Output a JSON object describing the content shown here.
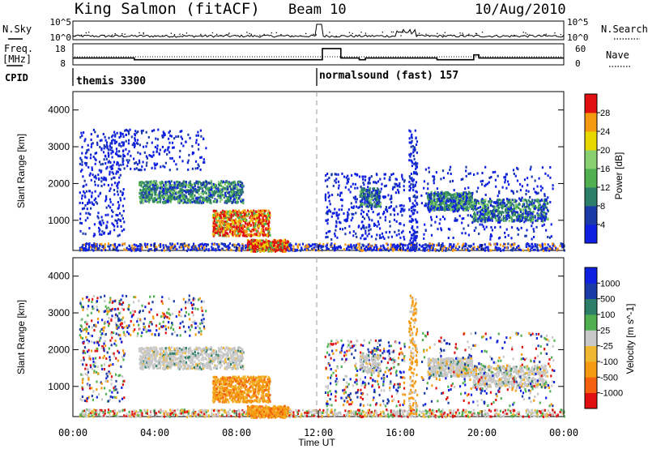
{
  "header": {
    "station": "King Salmon (fitACF)",
    "beam": "Beam 10",
    "date": "10/Aug/2010"
  },
  "left_labels": {
    "nsky": "N.Sky",
    "freq": "Freq.",
    "freq_unit": "[MHz]",
    "cpid": "CPID"
  },
  "right_labels": {
    "nsearch": "N.Search",
    "nave": "Nave"
  },
  "cpid_segments": {
    "first": "themis 3300",
    "second": "normalsound (fast) 157"
  },
  "colors": {
    "blue": "#1020e0",
    "darkblue": "#1a3aa8",
    "teal": "#2e7f6a",
    "green": "#50b050",
    "lightgreen": "#88d070",
    "yellow": "#e8d800",
    "orange": "#f49a10",
    "red": "#e01010",
    "gray": "#c8c8c8"
  },
  "chart_data": [
    {
      "type": "line",
      "name": "noise-panel",
      "y_ticks_left": [
        "10^5",
        "10^0"
      ],
      "y_ticks_right": [
        "10^5",
        "10^0"
      ]
    },
    {
      "type": "line",
      "name": "freq-nave-panel",
      "y_ticks_left": [
        "18",
        "8"
      ],
      "y_ticks_right": [
        "60",
        "0"
      ],
      "freq_steps": [
        {
          "t": 0.0,
          "f": 12
        },
        {
          "t": 3.0,
          "f": 11.2
        },
        {
          "t": 12.2,
          "f": 16.5
        },
        {
          "t": 13.1,
          "f": 12
        },
        {
          "t": 14.0,
          "f": 11.2
        },
        {
          "t": 14.3,
          "f": 12
        },
        {
          "t": 17.8,
          "f": 11.2
        },
        {
          "t": 19.6,
          "f": 13.5
        },
        {
          "t": 19.85,
          "f": 12
        },
        {
          "t": 24.0,
          "f": 12
        }
      ]
    },
    {
      "type": "heatmap",
      "ylabel": "Slant Range [km]",
      "yticks": [
        1000,
        2000,
        3000,
        4000
      ],
      "ylim": [
        180,
        4500
      ],
      "colorbar_label": "Power [dB]",
      "colorbar_ticks": [
        4,
        8,
        12,
        16,
        20,
        24,
        28
      ],
      "colorbar_colors": [
        "#1020e0",
        "#1a3aa8",
        "#2e7f6a",
        "#50b050",
        "#88d070",
        "#e8d800",
        "#f49a10",
        "#e01010"
      ]
    },
    {
      "type": "heatmap",
      "ylabel": "Slant Range [km]",
      "yticks": [
        1000,
        2000,
        3000,
        4000
      ],
      "ylim": [
        180,
        4500
      ],
      "colorbar_label": "Velocity [m s^-1]",
      "colorbar_ticks": [
        -1000,
        -500,
        -100,
        -25,
        25,
        100,
        500,
        1000
      ],
      "colorbar_colors": [
        "#e01010",
        "#f46010",
        "#f49a10",
        "#f0b830",
        "#c8c8c8",
        "#50b050",
        "#2e7f6a",
        "#1a3aa8",
        "#1020e0"
      ]
    }
  ],
  "x_axis": {
    "label": "Time UT",
    "ticks": [
      "00:00",
      "04:00",
      "08:00",
      "12:00",
      "16:00",
      "20:00",
      "00:00"
    ]
  }
}
